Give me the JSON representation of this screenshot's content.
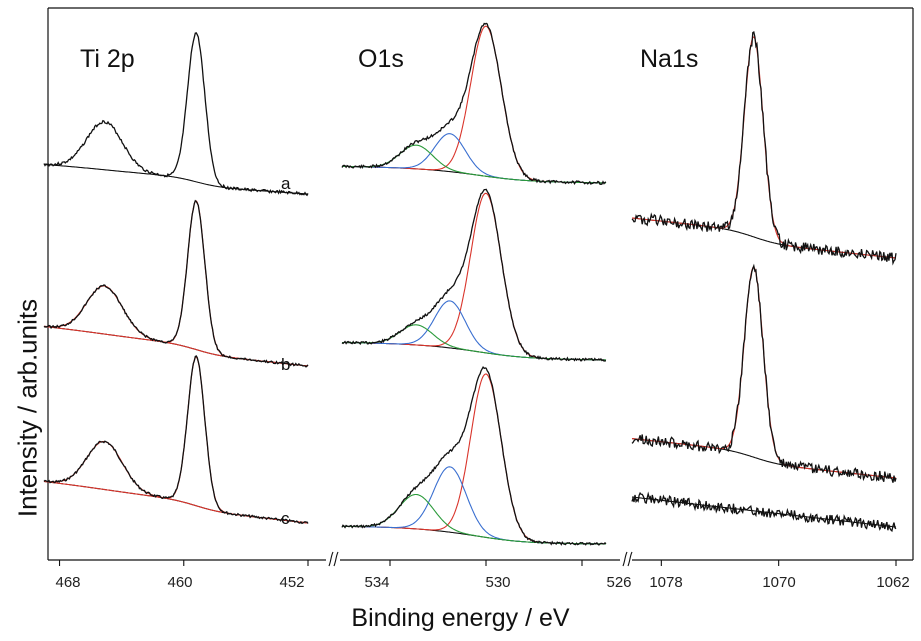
{
  "axes": {
    "xlabel": "Binding energy / eV",
    "ylabel": "Intensity / arb.units"
  },
  "colors": {
    "data": "#111111",
    "fit_main": "#d9342b",
    "fit_blue": "#3a6fd0",
    "fit_green": "#2a9a3a",
    "background": "#111111"
  },
  "chart_data": [
    {
      "type": "line",
      "title": "Ti 2p",
      "xlim": [
        469,
        452
      ],
      "xticks": [
        "468",
        "460",
        "452"
      ],
      "xtick_values": [
        468,
        460,
        452
      ],
      "series": [
        {
          "name": "a",
          "peaks": [
            {
              "center": 465.1,
              "fwhm": 2.7,
              "height": 0.3
            },
            {
              "center": 459.2,
              "fwhm": 1.3,
              "height": 0.93
            }
          ],
          "fit_color": "none"
        },
        {
          "name": "b",
          "peaks": [
            {
              "center": 465.1,
              "fwhm": 2.7,
              "height": 0.3
            },
            {
              "center": 459.2,
              "fwhm": 1.3,
              "height": 0.93
            }
          ],
          "fit_color": "red"
        },
        {
          "name": "c",
          "peaks": [
            {
              "center": 465.1,
              "fwhm": 2.7,
              "height": 0.3
            },
            {
              "center": 459.2,
              "fwhm": 1.3,
              "height": 0.93
            }
          ],
          "fit_color": "red"
        }
      ]
    },
    {
      "type": "line",
      "title": "O1s",
      "xlim": [
        536,
        525
      ],
      "xticks": [
        "534",
        "530",
        "526"
      ],
      "xtick_values": [
        534,
        530,
        526
      ],
      "series": [
        {
          "name": "",
          "components": [
            {
              "center": 530.0,
              "fwhm": 1.5,
              "height": 0.95,
              "color": "red"
            },
            {
              "center": 531.5,
              "fwhm": 1.5,
              "height": 0.24,
              "color": "blue"
            },
            {
              "center": 532.9,
              "fwhm": 1.6,
              "height": 0.15,
              "color": "green"
            }
          ]
        },
        {
          "name": "",
          "components": [
            {
              "center": 530.0,
              "fwhm": 1.5,
              "height": 0.95,
              "color": "red"
            },
            {
              "center": 531.5,
              "fwhm": 1.5,
              "height": 0.28,
              "color": "blue"
            },
            {
              "center": 532.9,
              "fwhm": 1.6,
              "height": 0.12,
              "color": "green"
            }
          ]
        },
        {
          "name": "",
          "components": [
            {
              "center": 530.0,
              "fwhm": 1.5,
              "height": 0.95,
              "color": "red"
            },
            {
              "center": 531.5,
              "fwhm": 1.6,
              "height": 0.38,
              "color": "blue"
            },
            {
              "center": 532.9,
              "fwhm": 1.7,
              "height": 0.2,
              "color": "green"
            }
          ]
        }
      ]
    },
    {
      "type": "line",
      "title": "Na1s",
      "xlim": [
        1080,
        1062
      ],
      "xticks": [
        "1078",
        "1070",
        "1062"
      ],
      "xtick_values": [
        1078,
        1070,
        1062
      ],
      "series": [
        {
          "name": "",
          "peaks": [
            {
              "center": 1071.7,
              "fwhm": 1.5,
              "height": 1.0
            }
          ],
          "fit_color": "red"
        },
        {
          "name": "",
          "peaks": [
            {
              "center": 1071.7,
              "fwhm": 1.5,
              "height": 1.0
            }
          ],
          "fit_color": "red"
        },
        {
          "name": "",
          "peaks": [],
          "fit_color": "none"
        }
      ]
    }
  ]
}
